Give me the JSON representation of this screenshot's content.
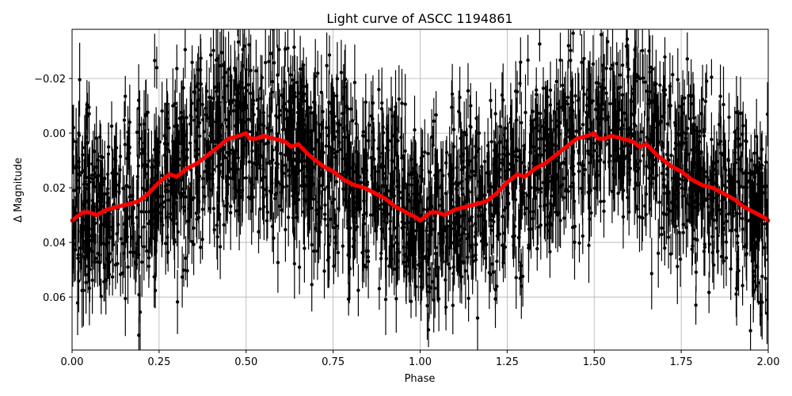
{
  "chart_data": {
    "type": "scatter",
    "title": "Light curve of ASCC 1194861",
    "xlabel": "Phase",
    "ylabel": "Δ Magnitude",
    "xlim": [
      0.0,
      2.0
    ],
    "ylim": [
      0.0794,
      -0.038
    ],
    "y_inverted": true,
    "grid": true,
    "xticks": [
      "0.00",
      "0.25",
      "0.50",
      "0.75",
      "1.00",
      "1.25",
      "1.50",
      "1.75",
      "2.00"
    ],
    "yticks": [
      "−0.02",
      "0.00",
      "0.02",
      "0.04",
      "0.06"
    ],
    "ytick_values": [
      -0.02,
      0.0,
      0.02,
      0.04,
      0.06
    ],
    "series": [
      {
        "name": "observations",
        "kind": "errorbar",
        "color": "#000000",
        "description": "Dense phase-folded photometry with error bars, scatter roughly ±0.04 mag around the binned curve",
        "scatter_sigma": 0.02
      },
      {
        "name": "binned curve",
        "kind": "line",
        "color": "#ff0000",
        "linewidth": 5,
        "x": [
          0.0,
          0.03,
          0.05,
          0.07,
          0.1,
          0.13,
          0.16,
          0.19,
          0.22,
          0.25,
          0.28,
          0.3,
          0.33,
          0.36,
          0.39,
          0.42,
          0.45,
          0.48,
          0.5,
          0.51,
          0.53,
          0.55,
          0.58,
          0.61,
          0.63,
          0.65,
          0.68,
          0.7,
          0.72,
          0.75,
          0.78,
          0.81,
          0.84,
          0.87,
          0.9,
          0.93,
          0.96,
          0.99,
          1.0,
          1.03,
          1.05,
          1.07,
          1.1,
          1.13,
          1.16,
          1.19,
          1.22,
          1.25,
          1.28,
          1.3,
          1.33,
          1.36,
          1.39,
          1.42,
          1.45,
          1.48,
          1.5,
          1.51,
          1.53,
          1.55,
          1.58,
          1.61,
          1.63,
          1.65,
          1.68,
          1.7,
          1.72,
          1.75,
          1.78,
          1.81,
          1.84,
          1.87,
          1.9,
          1.93,
          1.96,
          1.99,
          2.0
        ],
        "values": [
          0.032,
          0.029,
          0.029,
          0.03,
          0.028,
          0.027,
          0.026,
          0.025,
          0.022,
          0.018,
          0.015,
          0.016,
          0.013,
          0.011,
          0.008,
          0.005,
          0.002,
          0.001,
          0.0,
          0.002,
          0.002,
          0.001,
          0.002,
          0.003,
          0.005,
          0.004,
          0.008,
          0.01,
          0.012,
          0.014,
          0.017,
          0.019,
          0.02,
          0.022,
          0.024,
          0.027,
          0.029,
          0.031,
          0.032,
          0.029,
          0.029,
          0.03,
          0.028,
          0.027,
          0.026,
          0.025,
          0.022,
          0.018,
          0.015,
          0.016,
          0.013,
          0.011,
          0.008,
          0.005,
          0.002,
          0.001,
          0.0,
          0.002,
          0.002,
          0.001,
          0.002,
          0.003,
          0.005,
          0.004,
          0.008,
          0.01,
          0.012,
          0.014,
          0.017,
          0.019,
          0.02,
          0.022,
          0.024,
          0.027,
          0.029,
          0.031,
          0.032
        ]
      }
    ]
  }
}
